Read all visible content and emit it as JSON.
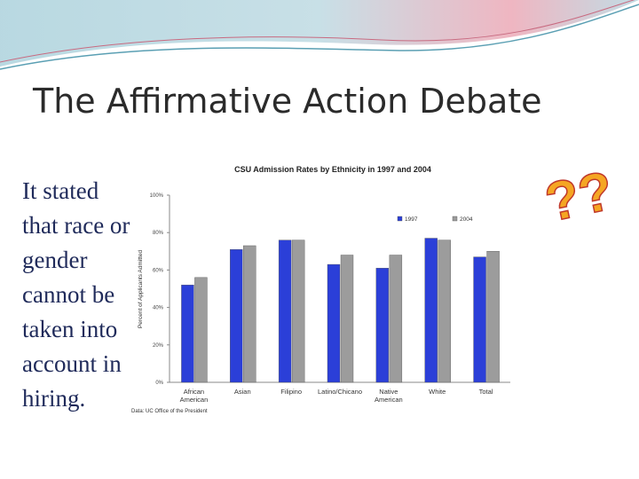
{
  "slide_title": "The Affirmative Action Debate",
  "body_lines": [
    "It stated",
    "that race or",
    "gender",
    "cannot be",
    "taken into",
    "account in",
    "hiring."
  ],
  "decoration": "??",
  "chart_data": {
    "type": "bar",
    "title": "CSU Admission Rates by Ethnicity in 1997 and 2004",
    "y_label": "Percent of Applicants Admitted",
    "source": "Data: UC Office of the President",
    "categories": [
      "African American",
      "Asian",
      "Filipino",
      "Latino/Chicano",
      "Native American",
      "White",
      "Total"
    ],
    "series": [
      {
        "name": "1997",
        "color": "#2b3fd8",
        "values": [
          52,
          71,
          76,
          63,
          61,
          77,
          67
        ]
      },
      {
        "name": "2004",
        "color": "#9c9c9c",
        "values": [
          56,
          73,
          76,
          68,
          68,
          76,
          70
        ]
      }
    ],
    "ylim": [
      0,
      100
    ],
    "yticks": [
      {
        "value": 0,
        "label": "0%"
      },
      {
        "value": 20,
        "label": "20%"
      },
      {
        "value": 40,
        "label": "40%"
      },
      {
        "value": 60,
        "label": "60%"
      },
      {
        "value": 80,
        "label": "80%"
      },
      {
        "value": 100,
        "label": "100%"
      }
    ],
    "legend": "top-right"
  }
}
